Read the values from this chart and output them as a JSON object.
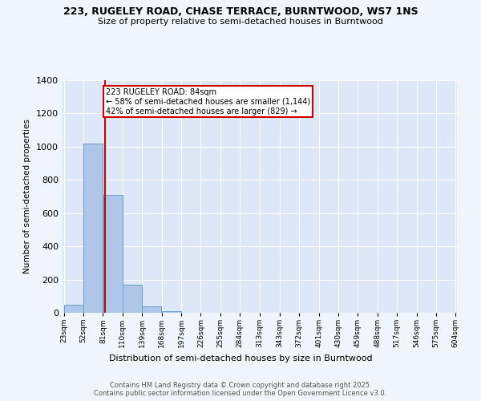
{
  "title": "223, RUGELEY ROAD, CHASE TERRACE, BURNTWOOD, WS7 1NS",
  "subtitle": "Size of property relative to semi-detached houses in Burntwood",
  "xlabel": "Distribution of semi-detached houses by size in Burntwood",
  "ylabel": "Number of semi-detached properties",
  "footer1": "Contains HM Land Registry data © Crown copyright and database right 2025.",
  "footer2": "Contains public sector information licensed under the Open Government Licence v3.0.",
  "bin_edges": [
    23,
    52,
    81,
    110,
    139,
    168,
    197,
    226,
    255,
    284,
    313,
    343,
    372,
    401,
    430,
    459,
    488,
    517,
    546,
    575,
    604
  ],
  "bar_heights": [
    50,
    1020,
    710,
    170,
    40,
    10,
    0,
    0,
    0,
    0,
    0,
    0,
    0,
    0,
    0,
    0,
    0,
    0,
    0,
    0
  ],
  "bar_color": "#aec6e8",
  "bar_edge_color": "#6a9ec8",
  "property_size": 84,
  "property_label": "223 RUGELEY ROAD: 84sqm",
  "annotation_line1": "← 58% of semi-detached houses are smaller (1,144)",
  "annotation_line2": "42% of semi-detached houses are larger (829) →",
  "vline_color": "#cc0000",
  "annotation_box_color": "#cc0000",
  "ylim": [
    0,
    1400
  ],
  "background_color": "#dce8f8",
  "fig_background_color": "#f0f4fc",
  "grid_color": "#ffffff",
  "tick_labels": [
    "23sqm",
    "52sqm",
    "81sqm",
    "110sqm",
    "139sqm",
    "168sqm",
    "197sqm",
    "226sqm",
    "255sqm",
    "284sqm",
    "313sqm",
    "343sqm",
    "372sqm",
    "401sqm",
    "430sqm",
    "459sqm",
    "488sqm",
    "517sqm",
    "546sqm",
    "575sqm",
    "604sqm"
  ]
}
